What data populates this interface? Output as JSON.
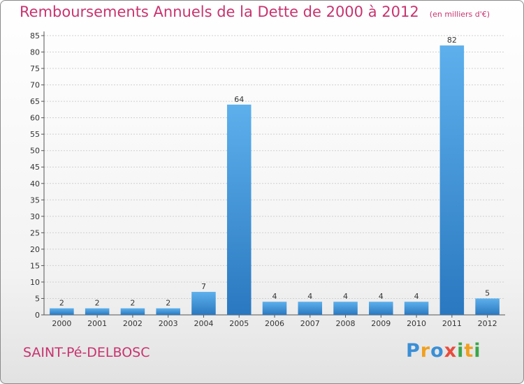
{
  "chart_data": {
    "type": "bar",
    "title": "Remboursements Annuels de la Dette de 2000 à 2012",
    "subtitle": "(en milliers d'€)",
    "categories": [
      "2000",
      "2001",
      "2002",
      "2003",
      "2004",
      "2005",
      "2006",
      "2007",
      "2008",
      "2009",
      "2010",
      "2011",
      "2012"
    ],
    "values": [
      2,
      2,
      2,
      2,
      7,
      64,
      4,
      4,
      4,
      4,
      4,
      82,
      5
    ],
    "ylim": [
      0,
      85
    ],
    "yticks": [
      0,
      5,
      10,
      15,
      20,
      25,
      30,
      35,
      40,
      45,
      50,
      55,
      60,
      65,
      70,
      75,
      80,
      85
    ],
    "grid": true,
    "bar_color": "#3d8fd4",
    "title_color": "#c8336e"
  },
  "footer": {
    "commune": "SAINT-Pé-DELBOSC",
    "brand": "Proxiti"
  }
}
